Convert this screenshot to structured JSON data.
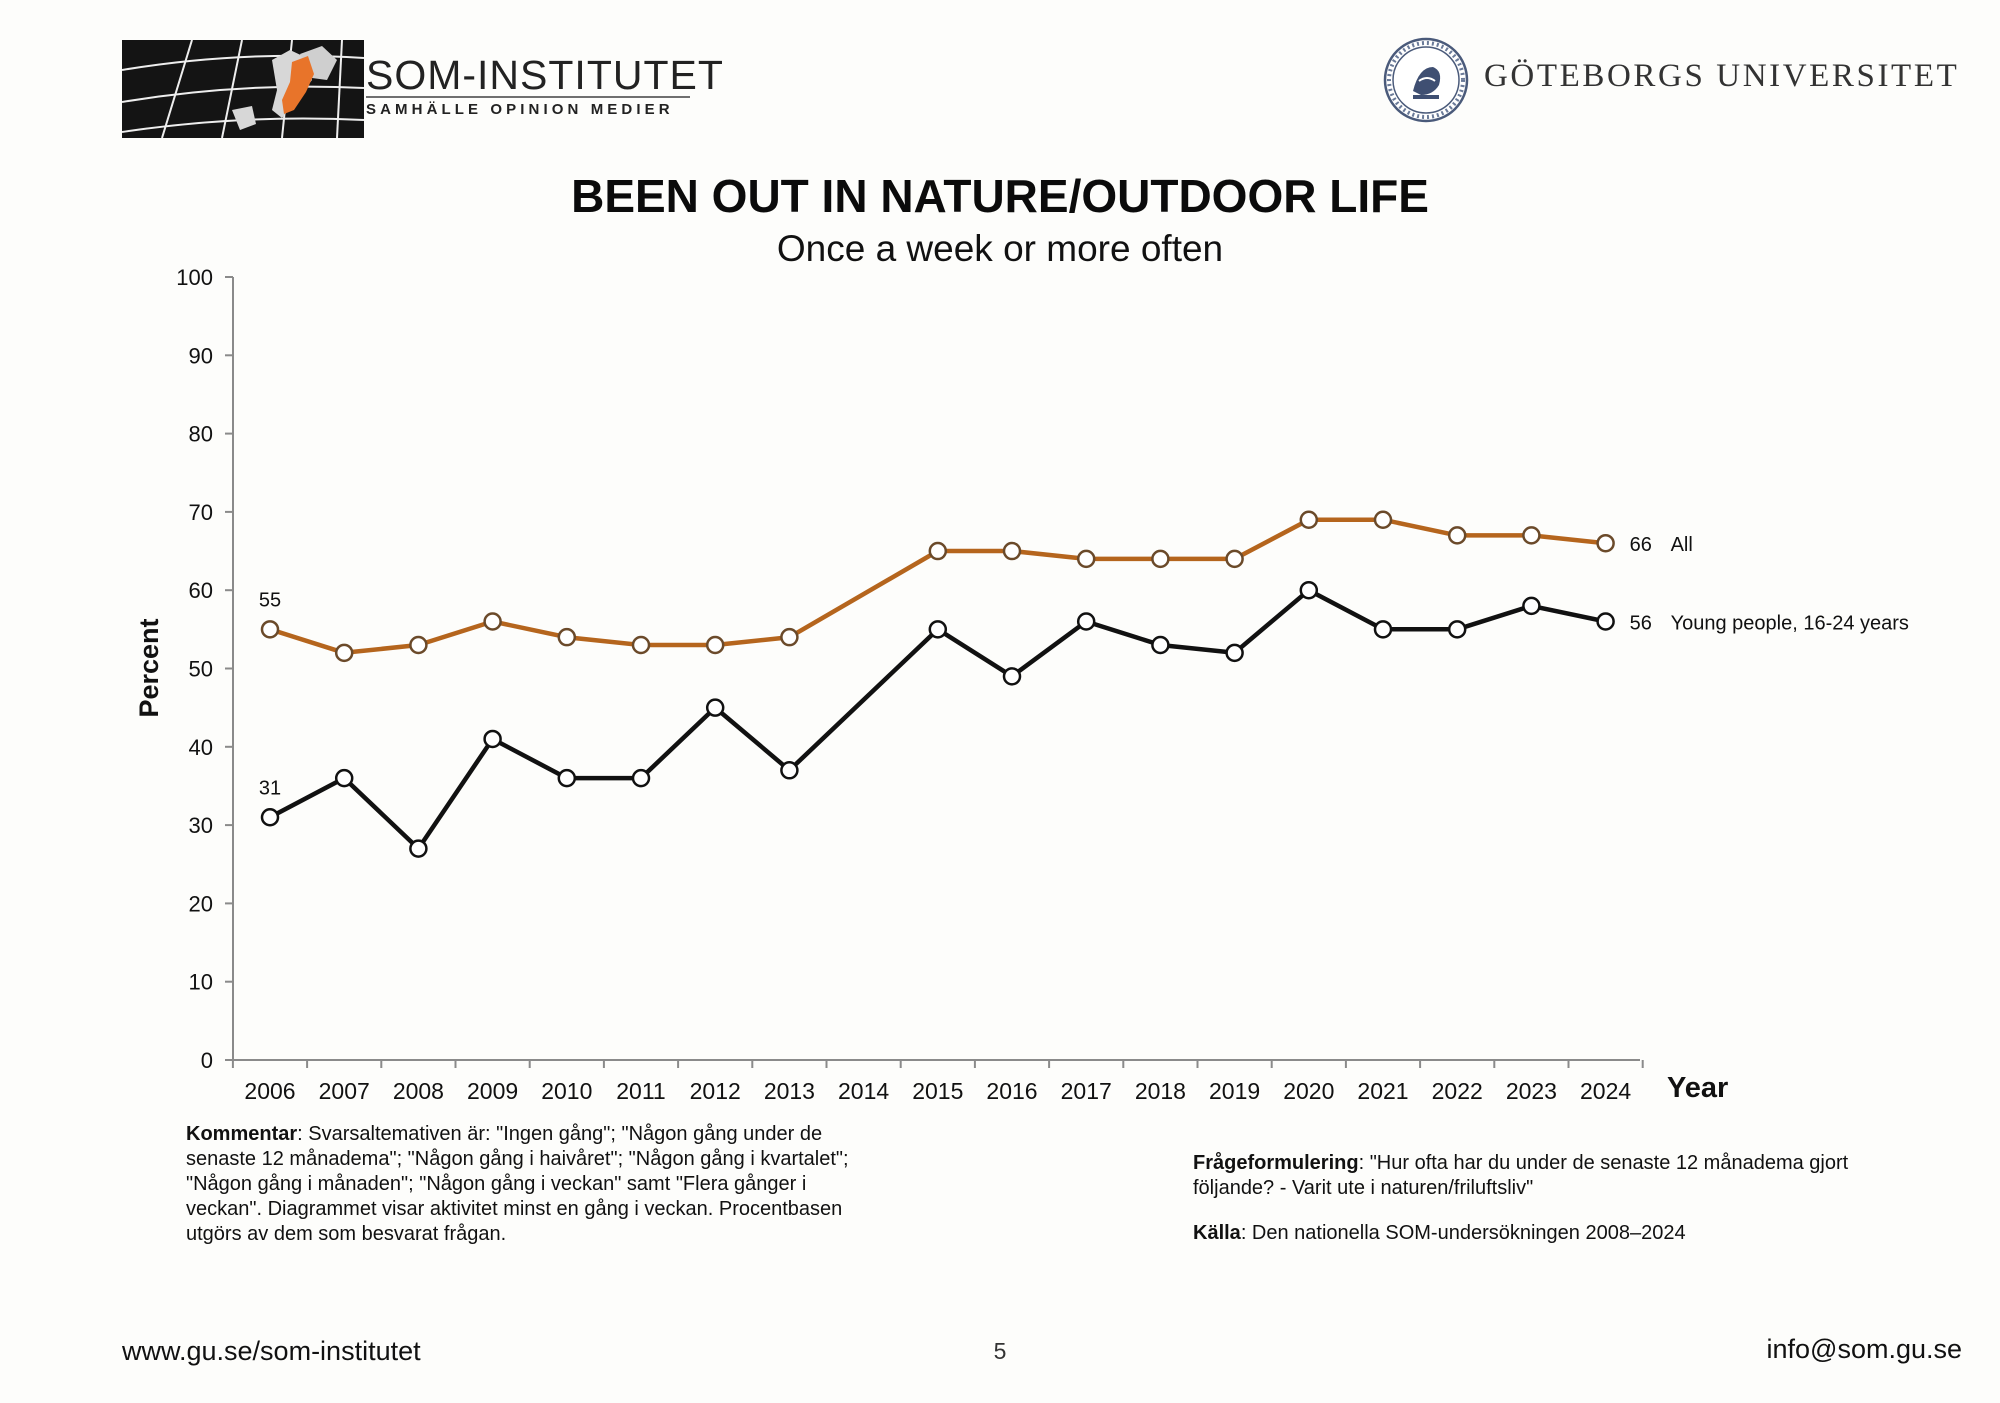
{
  "header": {
    "left_logo": {
      "name": "SOM-INSTITUTET",
      "tagline": "SAMHÄLLE OPINION MEDIER"
    },
    "right_logo": {
      "name": "GÖTEBORGS UNIVERSITET"
    }
  },
  "chart_data": {
    "type": "line",
    "title": "BEEN OUT IN NATURE/OUTDOOR LIFE",
    "subtitle": "Once a week or more often",
    "xlabel": "Year",
    "ylabel": "Percent",
    "ylim": [
      0,
      100
    ],
    "yticks": [
      "0",
      "10",
      "20",
      "30",
      "40",
      "50",
      "60",
      "70",
      "80",
      "90",
      "100"
    ],
    "categories": [
      "2006",
      "2007",
      "2008",
      "2009",
      "2010",
      "2011",
      "2012",
      "2013",
      "2014",
      "2015",
      "2016",
      "2017",
      "2018",
      "2019",
      "2020",
      "2021",
      "2022",
      "2023",
      "2024"
    ],
    "series": [
      {
        "name": "All",
        "color": "#b5651d",
        "values": [
          55,
          52,
          53,
          56,
          54,
          53,
          53,
          54,
          null,
          65,
          65,
          64,
          64,
          64,
          69,
          69,
          67,
          67,
          66
        ],
        "start_label": "55",
        "end_label": "66",
        "end_name": "All"
      },
      {
        "name": "Young people, 16-24 years",
        "color": "#111111",
        "values": [
          31,
          36,
          27,
          41,
          36,
          36,
          45,
          37,
          null,
          55,
          49,
          56,
          53,
          52,
          60,
          55,
          55,
          58,
          56
        ],
        "start_label": "31",
        "end_label": "56",
        "end_name": "Young people, 16-24 years"
      }
    ]
  },
  "notes": {
    "comment_label": "Kommentar",
    "comment_text": ": Svarsaltemativen är: \"Ingen gång\"; \"Någon gång under de senaste 12 månadema\"; \"Någon gång i haivåret\"; \"Någon gång i kvartalet\"; \"Någon gång i månaden\"; \"Någon gång i veckan\" samt \"Flera gånger i veckan\". Diagrammet visar aktivitet minst en gång i veckan. Procentbasen utgörs av dem som besvarat frågan.",
    "question_label": "Frågeformulering",
    "question_text": ": \"Hur ofta har du under de senaste 12 månadema gjort följande? - Varit ute i naturen/friluftsliv\"",
    "source_label": "Källa",
    "source_text": ": Den nationella SOM-undersökningen 2008–2024"
  },
  "footer": {
    "url": "www.gu.se/som-institutet",
    "page": "5",
    "email": "info@som.gu.se"
  }
}
